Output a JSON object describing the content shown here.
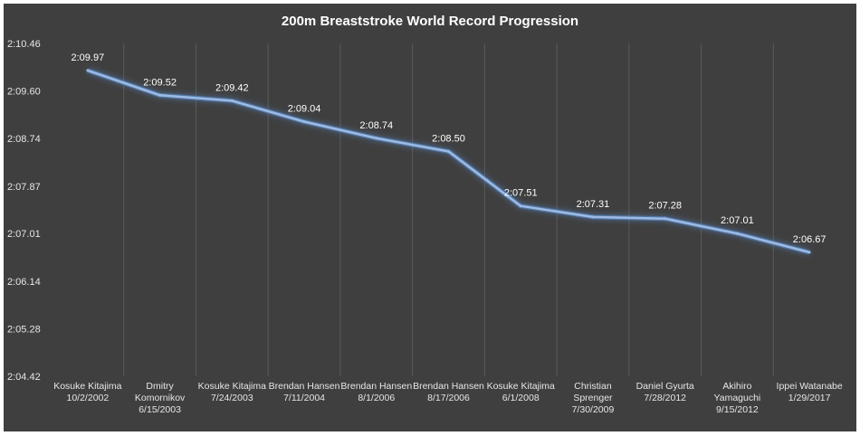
{
  "chart_data": {
    "type": "line",
    "title": "200m Breaststroke World Record Progression",
    "xlabel": "",
    "ylabel": "",
    "grid": "vertical",
    "legend": "none",
    "y_tick_labels": [
      "2:10.46",
      "2:09.60",
      "2:08.74",
      "2:07.87",
      "2:07.01",
      "2:06.14",
      "2:05.28",
      "2:04.42"
    ],
    "y_tick_seconds": [
      130.46,
      129.6,
      128.74,
      127.87,
      127.01,
      126.14,
      125.28,
      124.42
    ],
    "ylim_seconds": [
      124.42,
      130.46
    ],
    "categories": [
      [
        "Kosuke Kitajima",
        "10/2/2002"
      ],
      [
        "Dmitry",
        "Komornikov",
        "6/15/2003"
      ],
      [
        "Kosuke Kitajima",
        "7/24/2003"
      ],
      [
        "Brendan Hansen",
        "7/11/2004"
      ],
      [
        "Brendan Hansen",
        "8/1/2006"
      ],
      [
        "Brendan Hansen",
        "8/17/2006"
      ],
      [
        "Kosuke Kitajima",
        "6/1/2008"
      ],
      [
        "Christian",
        "Sprenger",
        "7/30/2009"
      ],
      [
        "Daniel Gyurta",
        "7/28/2012"
      ],
      [
        "Akihiro",
        "Yamaguchi",
        "9/15/2012"
      ],
      [
        "Ippei Watanabe",
        "1/29/2017"
      ]
    ],
    "series": [
      {
        "name": "World Record",
        "values_seconds": [
          129.97,
          129.52,
          129.42,
          129.04,
          128.74,
          128.5,
          127.51,
          127.31,
          127.28,
          127.01,
          126.67
        ],
        "value_labels": [
          "2:09.97",
          "2:09.52",
          "2:09.42",
          "2:09.04",
          "2:08.74",
          "2:08.50",
          "2:07.51",
          "2:07.31",
          "2:07.28",
          "2:07.01",
          "2:06.67"
        ]
      }
    ]
  },
  "colors": {
    "background": "#3f3f3f",
    "line": "#9dbbe3",
    "glow": "#5b8fd6",
    "text": "#ffffff",
    "axis_text": "#e6e6e6",
    "grid": "#5a5a5a"
  }
}
